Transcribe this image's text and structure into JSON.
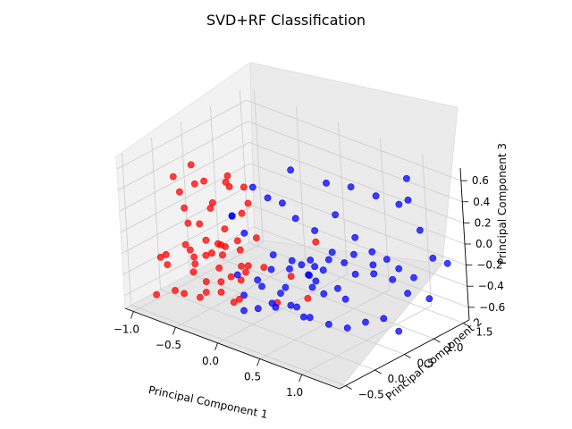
{
  "chart_data": {
    "type": "scatter",
    "projection": "3d",
    "title": "SVD+RF Classification",
    "xlabel": "Principal Component 1",
    "ylabel": "Principal Component 2",
    "zlabel": "Principal Component 3",
    "xlim": [
      -1.1,
      1.45
    ],
    "ylim": [
      -0.6,
      1.6
    ],
    "zlim": [
      -0.72,
      0.72
    ],
    "xticks": [
      "−1.0",
      "−0.5",
      "0.0",
      "0.5",
      "1.0"
    ],
    "yticks": [
      "−0.5",
      "0.0",
      "0.5",
      "1.0",
      "1.5"
    ],
    "zticks": [
      "−0.6",
      "−0.4",
      "−0.2",
      "0.0",
      "0.2",
      "0.4",
      "0.6"
    ],
    "grid": true,
    "colors": {
      "class_a": "#ff0000",
      "class_b": "#0000ff"
    },
    "series": [
      {
        "color": "#ff0000",
        "points": [
          [
            -0.82,
            -0.45,
            -0.55
          ],
          [
            -0.78,
            -0.4,
            -0.2
          ],
          [
            -0.75,
            -0.35,
            -0.18
          ],
          [
            -0.7,
            -0.3,
            -0.52
          ],
          [
            -0.68,
            -0.25,
            0.55
          ],
          [
            -0.65,
            -0.2,
            0.4
          ],
          [
            -0.62,
            -0.18,
            0.25
          ],
          [
            -0.6,
            -0.15,
            -0.15
          ],
          [
            -0.58,
            -0.12,
            -0.22
          ],
          [
            -0.55,
            -0.1,
            -0.6
          ],
          [
            -0.52,
            -0.08,
            0.1
          ],
          [
            -0.5,
            -0.05,
            -0.45
          ],
          [
            -0.48,
            -0.02,
            0.5
          ],
          [
            -0.45,
            0.0,
            -0.18
          ],
          [
            -0.42,
            0.02,
            0.3
          ],
          [
            -0.4,
            0.05,
            -0.55
          ],
          [
            -0.38,
            0.08,
            -0.2
          ],
          [
            -0.35,
            0.1,
            0.05
          ],
          [
            -0.32,
            0.12,
            -0.4
          ],
          [
            -0.3,
            0.15,
            0.45
          ],
          [
            -0.28,
            0.18,
            -0.62
          ],
          [
            -0.25,
            0.2,
            -0.15
          ],
          [
            -0.22,
            0.22,
            0.2
          ],
          [
            -0.2,
            0.25,
            -0.3
          ],
          [
            -0.8,
            0.05,
            -0.22
          ],
          [
            -0.76,
            0.1,
            -0.48
          ],
          [
            -0.72,
            0.15,
            0.35
          ],
          [
            -0.66,
            0.2,
            -0.18
          ],
          [
            -0.62,
            0.25,
            0.12
          ],
          [
            -0.58,
            0.3,
            -0.58
          ],
          [
            -0.54,
            0.35,
            -0.25
          ],
          [
            -0.5,
            0.4,
            0.42
          ],
          [
            -0.46,
            0.45,
            -0.2
          ],
          [
            -0.42,
            0.5,
            -0.5
          ],
          [
            -0.38,
            0.55,
            0.15
          ],
          [
            -0.34,
            0.6,
            -0.18
          ],
          [
            -0.85,
            -0.2,
            -0.35
          ],
          [
            -0.74,
            -0.1,
            -0.62
          ],
          [
            -0.64,
            0.0,
            0.6
          ],
          [
            -0.56,
            0.05,
            -0.25
          ],
          [
            -0.44,
            -0.3,
            -0.19
          ],
          [
            -0.36,
            -0.25,
            -0.45
          ],
          [
            -0.26,
            -0.15,
            -0.22
          ],
          [
            -0.18,
            -0.05,
            -0.55
          ],
          [
            -0.1,
            0.0,
            -0.2
          ],
          [
            -0.05,
            0.05,
            0.55
          ],
          [
            0.1,
            0.1,
            -0.18
          ],
          [
            0.2,
            0.15,
            -0.5
          ],
          [
            0.35,
            0.2,
            -0.22
          ],
          [
            0.5,
            0.25,
            -0.4
          ],
          [
            0.6,
            0.3,
            0.15
          ],
          [
            -0.7,
            0.45,
            -0.3
          ],
          [
            -0.6,
            0.5,
            0.3
          ],
          [
            -0.52,
            0.55,
            -0.62
          ],
          [
            -0.48,
            0.2,
            -0.17
          ],
          [
            -0.68,
            -0.05,
            0.05
          ]
        ]
      },
      {
        "color": "#0000ff",
        "points": [
          [
            0.4,
            0.8,
            0.5
          ],
          [
            0.55,
            1.0,
            0.45
          ],
          [
            0.7,
            1.2,
            0.35
          ],
          [
            0.9,
            1.3,
            0.3
          ],
          [
            1.1,
            1.35,
            0.1
          ],
          [
            1.2,
            1.4,
            -0.15
          ],
          [
            1.3,
            1.5,
            -0.2
          ],
          [
            1.0,
            1.1,
            -0.22
          ],
          [
            0.8,
            0.95,
            -0.2
          ],
          [
            0.6,
            0.75,
            -0.18
          ],
          [
            0.45,
            0.6,
            -0.25
          ],
          [
            0.3,
            0.45,
            -0.2
          ],
          [
            0.2,
            0.3,
            -0.4
          ],
          [
            0.1,
            0.2,
            -0.55
          ],
          [
            0.0,
            0.1,
            -0.6
          ],
          [
            -0.1,
            0.0,
            -0.62
          ],
          [
            0.25,
            0.05,
            -0.5
          ],
          [
            0.4,
            0.1,
            -0.45
          ],
          [
            0.55,
            0.2,
            -0.55
          ],
          [
            0.7,
            0.3,
            -0.6
          ],
          [
            0.85,
            0.4,
            -0.62
          ],
          [
            1.0,
            0.5,
            -0.55
          ],
          [
            1.15,
            0.6,
            -0.5
          ],
          [
            1.25,
            0.7,
            -0.62
          ],
          [
            0.35,
            0.9,
            -0.2
          ],
          [
            0.5,
            1.05,
            -0.22
          ],
          [
            0.65,
            1.15,
            -0.18
          ],
          [
            0.75,
            1.25,
            -0.25
          ],
          [
            0.15,
            0.6,
            0.15
          ],
          [
            0.3,
            0.7,
            0.05
          ],
          [
            0.45,
            0.85,
            0.2
          ],
          [
            0.6,
            0.95,
            0.0
          ],
          [
            -0.2,
            0.4,
            0.4
          ],
          [
            -0.1,
            0.5,
            0.3
          ],
          [
            0.0,
            0.6,
            0.25
          ],
          [
            0.05,
            0.7,
            0.55
          ],
          [
            0.2,
            0.8,
            -0.35
          ],
          [
            0.35,
            0.5,
            -0.3
          ],
          [
            0.5,
            0.4,
            -0.28
          ],
          [
            0.65,
            0.55,
            -0.35
          ],
          [
            0.8,
            0.65,
            -0.2
          ],
          [
            0.95,
            0.75,
            -0.18
          ],
          [
            1.1,
            0.85,
            -0.22
          ],
          [
            1.25,
            1.0,
            -0.2
          ],
          [
            -0.3,
            0.2,
            -0.4
          ],
          [
            -0.2,
            0.15,
            -0.55
          ],
          [
            -0.05,
            0.25,
            -0.45
          ],
          [
            0.1,
            0.35,
            -0.5
          ],
          [
            0.25,
            0.4,
            -0.6
          ],
          [
            0.4,
            0.3,
            -0.62
          ],
          [
            0.55,
            0.45,
            -0.4
          ],
          [
            0.7,
            0.6,
            -0.45
          ],
          [
            -0.4,
            0.3,
            0.1
          ],
          [
            -0.3,
            0.35,
            -0.05
          ],
          [
            -0.25,
            0.1,
            0.2
          ],
          [
            0.05,
            0.05,
            -0.3
          ],
          [
            0.15,
            0.15,
            -0.2
          ],
          [
            0.3,
            0.25,
            -0.18
          ],
          [
            0.45,
            0.35,
            -0.22
          ],
          [
            0.6,
            0.2,
            -0.25
          ],
          [
            0.0,
            0.4,
            -0.18
          ],
          [
            0.15,
            0.5,
            -0.22
          ],
          [
            0.3,
            0.6,
            -0.2
          ],
          [
            0.45,
            0.7,
            -0.18
          ],
          [
            1.35,
            1.1,
            -0.4
          ],
          [
            1.2,
            0.95,
            -0.35
          ],
          [
            0.9,
            1.45,
            0.5
          ],
          [
            1.05,
            1.25,
            0.4
          ]
        ]
      }
    ]
  }
}
